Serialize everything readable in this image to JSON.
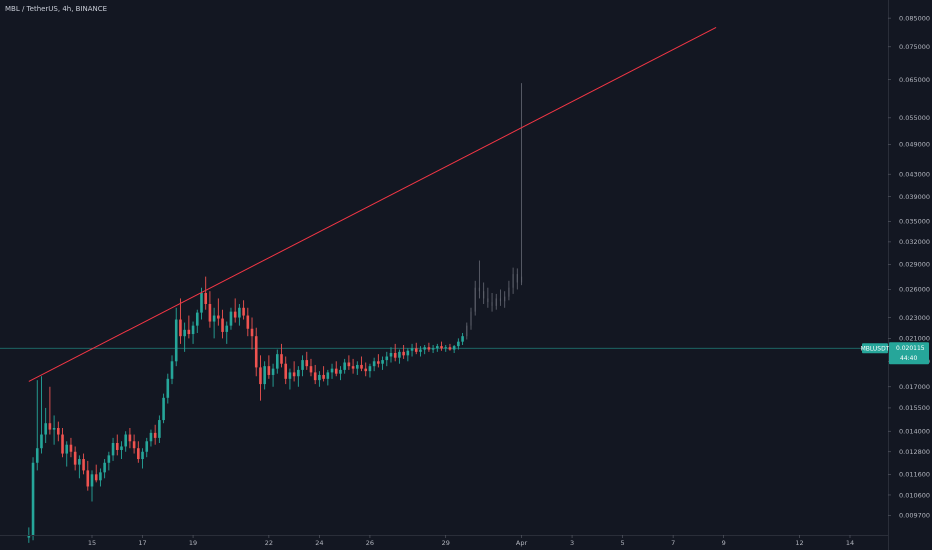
{
  "header": {
    "title": "MBL / TetherUS, 4h, BINANCE"
  },
  "price_label": {
    "symbol": "MBLUSDT",
    "price": "0.020115",
    "countdown": "44:40"
  },
  "colors": {
    "background": "#131722",
    "up": "#26a69a",
    "down": "#ef5350",
    "wick_muted": "#5d606b",
    "trendline": "#f23645",
    "price_line": "#26a69a",
    "axis_text": "#b2b5be"
  },
  "chart_data": {
    "type": "candlestick",
    "scale": "log",
    "ylim": [
      0.0089,
      0.092
    ],
    "y_ticks": [
      "0.085000",
      "0.075000",
      "0.065000",
      "0.055000",
      "0.049000",
      "0.043000",
      "0.039000",
      "0.035000",
      "0.032000",
      "0.029000",
      "0.026000",
      "0.023000",
      "0.021000",
      "0.019000",
      "0.017000",
      "0.015500",
      "0.014000",
      "0.012800",
      "0.011600",
      "0.010600",
      "0.009700"
    ],
    "y_tick_values": [
      0.085,
      0.075,
      0.065,
      0.055,
      0.049,
      0.043,
      0.039,
      0.035,
      0.032,
      0.029,
      0.026,
      0.023,
      0.021,
      0.019,
      0.017,
      0.0155,
      0.014,
      0.0128,
      0.0116,
      0.0106,
      0.0097
    ],
    "x_ticks": [
      {
        "label": "15",
        "day": 15
      },
      {
        "label": "17",
        "day": 17
      },
      {
        "label": "19",
        "day": 19
      },
      {
        "label": "22",
        "day": 22
      },
      {
        "label": "24",
        "day": 24
      },
      {
        "label": "26",
        "day": 26
      },
      {
        "label": "29",
        "day": 29
      },
      {
        "label": "Apr",
        "day": 32
      },
      {
        "label": "3",
        "day": 34
      },
      {
        "label": "5",
        "day": 36
      },
      {
        "label": "7",
        "day": 38
      },
      {
        "label": "9",
        "day": 40
      },
      {
        "label": "12",
        "day": 43
      },
      {
        "label": "14",
        "day": 45
      }
    ],
    "current_price": 0.020115,
    "trendline": [
      {
        "day": 12.5,
        "price": 0.0174
      },
      {
        "day": 39.7,
        "price": 0.0816
      }
    ],
    "ohlc_start_day": 12.5,
    "ohlc_interval_hours": 4,
    "ohlc": [
      [
        0.0088,
        0.0092,
        0.0086,
        0.0089
      ],
      [
        0.0089,
        0.0125,
        0.0087,
        0.0122
      ],
      [
        0.0122,
        0.0175,
        0.0118,
        0.013
      ],
      [
        0.013,
        0.0178,
        0.0127,
        0.0138
      ],
      [
        0.0138,
        0.0155,
        0.0133,
        0.0145
      ],
      [
        0.0145,
        0.017,
        0.0138,
        0.0141
      ],
      [
        0.0141,
        0.015,
        0.0132,
        0.0142
      ],
      [
        0.0142,
        0.0146,
        0.0134,
        0.0138
      ],
      [
        0.0138,
        0.0142,
        0.0125,
        0.0127
      ],
      [
        0.0127,
        0.0134,
        0.012,
        0.0132
      ],
      [
        0.0132,
        0.0136,
        0.0125,
        0.0128
      ],
      [
        0.0128,
        0.0131,
        0.0118,
        0.0121
      ],
      [
        0.0121,
        0.0126,
        0.0114,
        0.0124
      ],
      [
        0.0124,
        0.0127,
        0.0116,
        0.0118
      ],
      [
        0.0118,
        0.0123,
        0.0108,
        0.011
      ],
      [
        0.011,
        0.0118,
        0.0103,
        0.0116
      ],
      [
        0.0116,
        0.0121,
        0.0112,
        0.0113
      ],
      [
        0.0113,
        0.0119,
        0.011,
        0.0117
      ],
      [
        0.0117,
        0.0124,
        0.0114,
        0.0122
      ],
      [
        0.0122,
        0.0128,
        0.0118,
        0.0126
      ],
      [
        0.0126,
        0.0136,
        0.0123,
        0.0133
      ],
      [
        0.0133,
        0.0138,
        0.0126,
        0.0129
      ],
      [
        0.0129,
        0.0134,
        0.0124,
        0.0131
      ],
      [
        0.0131,
        0.014,
        0.0128,
        0.0138
      ],
      [
        0.0138,
        0.0142,
        0.013,
        0.0134
      ],
      [
        0.0134,
        0.0138,
        0.0127,
        0.013
      ],
      [
        0.013,
        0.0134,
        0.0122,
        0.0124
      ],
      [
        0.0124,
        0.013,
        0.0119,
        0.0128
      ],
      [
        0.0128,
        0.0136,
        0.0125,
        0.0134
      ],
      [
        0.0134,
        0.0141,
        0.0131,
        0.0139
      ],
      [
        0.0139,
        0.0144,
        0.0132,
        0.0136
      ],
      [
        0.0136,
        0.015,
        0.0133,
        0.0147
      ],
      [
        0.0147,
        0.0165,
        0.0145,
        0.0162
      ],
      [
        0.0162,
        0.018,
        0.0158,
        0.0176
      ],
      [
        0.0176,
        0.0195,
        0.0172,
        0.019
      ],
      [
        0.019,
        0.024,
        0.0186,
        0.0228
      ],
      [
        0.0228,
        0.025,
        0.0205,
        0.0212
      ],
      [
        0.0212,
        0.0225,
        0.0198,
        0.0218
      ],
      [
        0.0218,
        0.0232,
        0.021,
        0.0214
      ],
      [
        0.0214,
        0.0226,
        0.0205,
        0.0222
      ],
      [
        0.0222,
        0.0238,
        0.0215,
        0.0235
      ],
      [
        0.0235,
        0.0262,
        0.0228,
        0.0256
      ],
      [
        0.0256,
        0.0275,
        0.0238,
        0.0244
      ],
      [
        0.0244,
        0.0258,
        0.022,
        0.0226
      ],
      [
        0.0226,
        0.024,
        0.021,
        0.0232
      ],
      [
        0.0232,
        0.025,
        0.0222,
        0.0229
      ],
      [
        0.0229,
        0.0238,
        0.021,
        0.0216
      ],
      [
        0.0216,
        0.0226,
        0.0205,
        0.0222
      ],
      [
        0.0222,
        0.024,
        0.0218,
        0.0236
      ],
      [
        0.0236,
        0.025,
        0.0225,
        0.023
      ],
      [
        0.023,
        0.0244,
        0.0222,
        0.024
      ],
      [
        0.024,
        0.0248,
        0.0228,
        0.0232
      ],
      [
        0.0232,
        0.024,
        0.0212,
        0.0219
      ],
      [
        0.0219,
        0.023,
        0.02,
        0.0212
      ],
      [
        0.0212,
        0.022,
        0.0178,
        0.0185
      ],
      [
        0.0185,
        0.0195,
        0.016,
        0.0172
      ],
      [
        0.0172,
        0.019,
        0.0168,
        0.0186
      ],
      [
        0.0186,
        0.0195,
        0.0176,
        0.0179
      ],
      [
        0.0179,
        0.0188,
        0.017,
        0.0184
      ],
      [
        0.0184,
        0.02,
        0.018,
        0.0196
      ],
      [
        0.0196,
        0.0205,
        0.0185,
        0.0188
      ],
      [
        0.0188,
        0.0194,
        0.0172,
        0.0176
      ],
      [
        0.0176,
        0.0184,
        0.0168,
        0.0181
      ],
      [
        0.0181,
        0.019,
        0.0174,
        0.0178
      ],
      [
        0.0178,
        0.0186,
        0.017,
        0.0183
      ],
      [
        0.0183,
        0.0195,
        0.0178,
        0.0191
      ],
      [
        0.0191,
        0.0198,
        0.0183,
        0.0186
      ],
      [
        0.0186,
        0.0192,
        0.0178,
        0.0181
      ],
      [
        0.0181,
        0.0187,
        0.0172,
        0.0175
      ],
      [
        0.0175,
        0.0182,
        0.017,
        0.0179
      ],
      [
        0.0179,
        0.0186,
        0.0174,
        0.0176
      ],
      [
        0.0176,
        0.0183,
        0.0171,
        0.0181
      ],
      [
        0.0181,
        0.0188,
        0.0176,
        0.0184
      ],
      [
        0.0184,
        0.019,
        0.0178,
        0.018
      ],
      [
        0.018,
        0.0186,
        0.0175,
        0.0183
      ],
      [
        0.0183,
        0.0192,
        0.018,
        0.0189
      ],
      [
        0.0189,
        0.0195,
        0.0183,
        0.0186
      ],
      [
        0.0186,
        0.0192,
        0.018,
        0.0184
      ],
      [
        0.0184,
        0.019,
        0.0179,
        0.0187
      ],
      [
        0.0187,
        0.0194,
        0.0182,
        0.0184
      ],
      [
        0.0184,
        0.0189,
        0.0178,
        0.0182
      ],
      [
        0.0182,
        0.0188,
        0.0177,
        0.0186
      ],
      [
        0.0186,
        0.0193,
        0.0182,
        0.019
      ],
      [
        0.019,
        0.0196,
        0.0185,
        0.0188
      ],
      [
        0.0188,
        0.0194,
        0.0183,
        0.0191
      ],
      [
        0.0191,
        0.0198,
        0.0186,
        0.0194
      ],
      [
        0.0194,
        0.0202,
        0.0189,
        0.0197
      ],
      [
        0.0197,
        0.0205,
        0.019,
        0.0193
      ],
      [
        0.0193,
        0.02,
        0.0188,
        0.0198
      ],
      [
        0.0198,
        0.0204,
        0.0192,
        0.0195
      ],
      [
        0.0195,
        0.0201,
        0.019,
        0.0199
      ],
      [
        0.0199,
        0.0205,
        0.0194,
        0.0201
      ],
      [
        0.0201,
        0.0206,
        0.0196,
        0.0198
      ],
      [
        0.0198,
        0.0203,
        0.0194,
        0.02
      ],
      [
        0.02,
        0.0204,
        0.0196,
        0.0202
      ],
      [
        0.0202,
        0.0206,
        0.0198,
        0.02
      ],
      [
        0.02,
        0.0204,
        0.0197,
        0.0201
      ],
      [
        0.0201,
        0.0205,
        0.0198,
        0.0203
      ],
      [
        0.0203,
        0.0207,
        0.0199,
        0.0201
      ],
      [
        0.0201,
        0.0204,
        0.0198,
        0.0202
      ],
      [
        0.0202,
        0.0205,
        0.0199,
        0.02
      ],
      [
        0.02,
        0.0204,
        0.0197,
        0.0203
      ],
      [
        0.0203,
        0.021,
        0.02,
        0.0207
      ],
      [
        0.0207,
        0.0215,
        0.0204,
        0.0212
      ],
      [
        0.0212,
        0.0225,
        0.0209,
        0.0222
      ],
      [
        0.0222,
        0.024,
        0.0218,
        0.0236
      ],
      [
        0.0236,
        0.027,
        0.0232,
        0.0262
      ],
      [
        0.0262,
        0.0295,
        0.025,
        0.0258
      ],
      [
        0.0258,
        0.0268,
        0.0244,
        0.025
      ],
      [
        0.025,
        0.0262,
        0.024,
        0.0246
      ],
      [
        0.0246,
        0.0256,
        0.0236,
        0.0242
      ],
      [
        0.0242,
        0.0255,
        0.0238,
        0.025
      ],
      [
        0.025,
        0.026,
        0.0242,
        0.0247
      ],
      [
        0.0247,
        0.0258,
        0.024,
        0.0252
      ],
      [
        0.0252,
        0.027,
        0.0248,
        0.0262
      ],
      [
        0.0262,
        0.0286,
        0.0255,
        0.0278
      ],
      [
        0.0278,
        0.0285,
        0.026,
        0.0268
      ],
      [
        0.0268,
        0.064,
        0.0265,
        0.0275
      ]
    ]
  }
}
